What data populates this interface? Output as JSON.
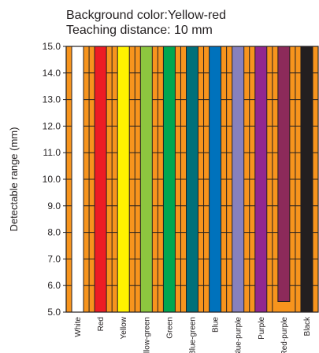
{
  "chart_data": {
    "type": "bar",
    "title_lines": [
      "Background color:Yellow-red",
      "Teaching distance: 10 mm"
    ],
    "ylabel": "Detectable range (mm)",
    "xlabel": "",
    "ylim": [
      5.0,
      15.0
    ],
    "yticks": [
      "5.0",
      "6.0",
      "7.0",
      "8.0",
      "9.0",
      "10.0",
      "11.0",
      "12.0",
      "13.0",
      "14.0",
      "15.0"
    ],
    "grid": true,
    "background_color": "#f7941d",
    "categories": [
      "White",
      "Red",
      "Yellow",
      "Yellow-green",
      "Green",
      "Blue-green",
      "Blue",
      "Blue-purple",
      "Purple",
      "Red-purple",
      "Black"
    ],
    "bars": [
      {
        "category": "White",
        "low": 5.0,
        "high": 15.0,
        "color": "#ffffff"
      },
      {
        "category": "Red",
        "low": 5.0,
        "high": 15.0,
        "color": "#ed1c24"
      },
      {
        "category": "Yellow",
        "low": 5.0,
        "high": 15.0,
        "color": "#fff200"
      },
      {
        "category": "Yellow-green",
        "low": 5.0,
        "high": 15.0,
        "color": "#8dc63f"
      },
      {
        "category": "Green",
        "low": 5.0,
        "high": 15.0,
        "color": "#00a651"
      },
      {
        "category": "Blue-green",
        "low": 5.0,
        "high": 15.0,
        "color": "#00707a"
      },
      {
        "category": "Blue",
        "low": 5.0,
        "high": 15.0,
        "color": "#0072bc"
      },
      {
        "category": "Blue-purple",
        "low": 5.0,
        "high": 15.0,
        "color": "#8781bd"
      },
      {
        "category": "Purple",
        "low": 5.0,
        "high": 15.0,
        "color": "#92278f"
      },
      {
        "category": "Red-purple",
        "low": 5.4,
        "high": 15.0,
        "color": "#8c2a5a"
      },
      {
        "category": "Black",
        "low": 5.0,
        "high": 15.0,
        "color": "#231f20"
      }
    ]
  }
}
